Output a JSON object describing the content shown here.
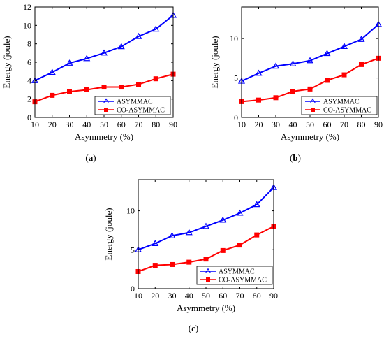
{
  "chart_data": [
    {
      "type": "line",
      "panel": "a",
      "caption": "(a)",
      "xlabel": "Asymmetry (%)",
      "ylabel": "Energy (joule)",
      "x": [
        10,
        20,
        30,
        40,
        50,
        60,
        70,
        80,
        90
      ],
      "xticks": [
        "10",
        "20",
        "30",
        "40",
        "50",
        "60",
        "70",
        "80",
        "90"
      ],
      "xlim": [
        10,
        90
      ],
      "ylim": [
        0,
        12
      ],
      "yticks": [
        0,
        2,
        4,
        6,
        8,
        10,
        12
      ],
      "yticklabels": [
        "0",
        "2",
        "4",
        "6",
        "8",
        "10",
        "12"
      ],
      "legend_position": "bottom-right",
      "series": [
        {
          "name": "ASYMMAC",
          "color": "#0000ff",
          "marker": "triangle",
          "values": [
            4.0,
            4.9,
            5.9,
            6.4,
            7.0,
            7.7,
            8.8,
            9.6,
            11.1
          ]
        },
        {
          "name": "CO-ASYMMAC",
          "color": "#ff0000",
          "marker": "square",
          "values": [
            1.7,
            2.4,
            2.8,
            3.0,
            3.3,
            3.3,
            3.6,
            4.2,
            4.7
          ]
        }
      ]
    },
    {
      "type": "line",
      "panel": "b",
      "caption": "(b)",
      "xlabel": "Asymmetry (%)",
      "ylabel": "Energy (joule)",
      "x": [
        10,
        20,
        30,
        40,
        50,
        60,
        70,
        80,
        90
      ],
      "xticks": [
        "10",
        "20",
        "30",
        "40",
        "50",
        "60",
        "70",
        "80",
        "90"
      ],
      "xlim": [
        10,
        90
      ],
      "ylim": [
        0,
        14
      ],
      "yticks": [
        0,
        5,
        10
      ],
      "yticklabels": [
        "0",
        "5",
        "10"
      ],
      "legend_position": "bottom-right",
      "series": [
        {
          "name": "ASYMMAC",
          "color": "#0000ff",
          "marker": "triangle",
          "values": [
            4.6,
            5.6,
            6.5,
            6.8,
            7.2,
            8.1,
            9.0,
            9.9,
            11.8
          ]
        },
        {
          "name": "CO-ASYMMAC",
          "color": "#ff0000",
          "marker": "square",
          "values": [
            2.0,
            2.2,
            2.5,
            3.3,
            3.6,
            4.7,
            5.4,
            6.7,
            7.5
          ]
        }
      ]
    },
    {
      "type": "line",
      "panel": "c",
      "caption": "(c)",
      "xlabel": "Asymmetry (%)",
      "ylabel": "Energy (joule)",
      "x": [
        10,
        20,
        30,
        40,
        50,
        60,
        70,
        80,
        90
      ],
      "xticks": [
        "10",
        "20",
        "30",
        "40",
        "50",
        "60",
        "70",
        "80",
        "90"
      ],
      "xlim": [
        10,
        90
      ],
      "ylim": [
        0,
        14
      ],
      "yticks": [
        0,
        5,
        10
      ],
      "yticklabels": [
        "0",
        "5",
        "10"
      ],
      "legend_position": "bottom-right",
      "series": [
        {
          "name": "ASYMMAC",
          "color": "#0000ff",
          "marker": "triangle",
          "values": [
            5.0,
            5.8,
            6.8,
            7.2,
            8.0,
            8.8,
            9.7,
            10.8,
            13.0
          ]
        },
        {
          "name": "CO-ASYMMAC",
          "color": "#ff0000",
          "marker": "square",
          "values": [
            2.2,
            3.0,
            3.1,
            3.4,
            3.8,
            4.9,
            5.6,
            6.9,
            8.0
          ]
        }
      ]
    }
  ]
}
